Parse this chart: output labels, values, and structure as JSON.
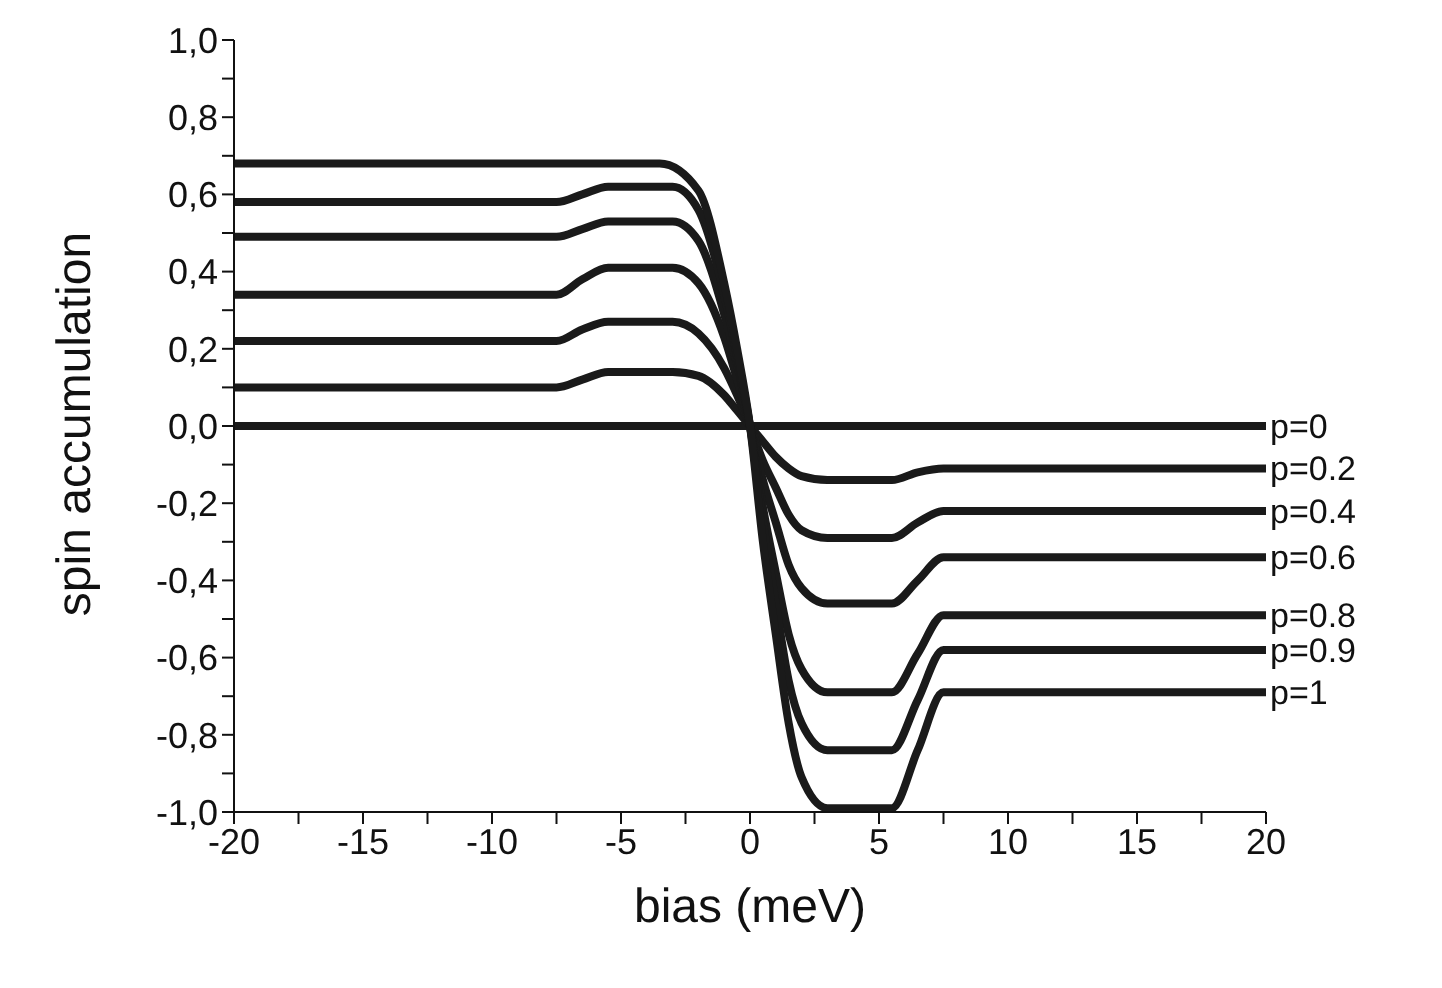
{
  "chart_data": {
    "type": "line",
    "xlabel": "bias (meV)",
    "ylabel": "spin accumulation",
    "legend": false,
    "grid": false,
    "marker": "none",
    "line_style": "solid",
    "xlim": [
      -20,
      20
    ],
    "ylim": [
      -1,
      1
    ],
    "xticks": [
      -20,
      {
        "value": -17.5,
        "label": null
      },
      -15,
      {
        "value": -12.5,
        "label": null
      },
      -10,
      {
        "value": -7.5,
        "label": null
      },
      -5,
      {
        "value": -2.5,
        "label": null
      },
      0,
      {
        "value": 2.5,
        "label": null
      },
      5,
      {
        "value": 7.5,
        "label": null
      },
      10,
      {
        "value": 12.5,
        "label": null
      },
      15,
      {
        "value": 17.5,
        "label": null
      },
      20
    ],
    "yticks": [
      {
        "value": -1,
        "label": "-1,0"
      },
      {
        "value": -0.9,
        "label": null
      },
      {
        "value": -0.8,
        "label": "-0,8"
      },
      {
        "value": -0.7,
        "label": null
      },
      {
        "value": -0.6,
        "label": "-0,6"
      },
      {
        "value": -0.5,
        "label": null
      },
      {
        "value": -0.4,
        "label": "-0,4"
      },
      {
        "value": -0.3,
        "label": null
      },
      {
        "value": -0.2,
        "label": "-0,2"
      },
      {
        "value": -0.1,
        "label": null
      },
      {
        "value": 0,
        "label": "0,0"
      },
      {
        "value": 0.1,
        "label": null
      },
      {
        "value": 0.2,
        "label": "0,2"
      },
      {
        "value": 0.3,
        "label": null
      },
      {
        "value": 0.4,
        "label": "0,4"
      },
      {
        "value": 0.5,
        "label": null
      },
      {
        "value": 0.6,
        "label": "0,6"
      },
      {
        "value": 0.7,
        "label": null
      },
      {
        "value": 0.8,
        "label": "0,8"
      },
      {
        "value": 0.9,
        "label": null
      },
      {
        "value": 1,
        "label": "1,0"
      }
    ],
    "series": [
      {
        "name": "p=0",
        "color": "#1a1a1a",
        "x": [
          -20,
          20
        ],
        "values": [
          0,
          0
        ]
      },
      {
        "name": "p=0.2",
        "color": "#1a1a1a",
        "x": [
          -20,
          -7.5,
          -6.5,
          -5.5,
          -3,
          -2,
          -1,
          -0.5,
          0,
          0.5,
          1,
          1.5,
          2,
          3,
          5.5,
          6.5,
          7.5,
          20
        ],
        "values": [
          0.1,
          0.1,
          0.12,
          0.14,
          0.14,
          0.13,
          0.08,
          0.04,
          0,
          -0.04,
          -0.08,
          -0.11,
          -0.13,
          -0.14,
          -0.14,
          -0.12,
          -0.11,
          -0.11
        ]
      },
      {
        "name": "p=0.4",
        "color": "#1a1a1a",
        "x": [
          -20,
          -7.5,
          -6.5,
          -5.5,
          -3,
          -2,
          -1,
          -0.5,
          0,
          0.5,
          1,
          1.5,
          2,
          3,
          5.5,
          6.5,
          7.5,
          20
        ],
        "values": [
          0.22,
          0.22,
          0.25,
          0.27,
          0.27,
          0.24,
          0.15,
          0.08,
          0,
          -0.09,
          -0.16,
          -0.23,
          -0.27,
          -0.29,
          -0.29,
          -0.25,
          -0.22,
          -0.22
        ]
      },
      {
        "name": "p=0.6",
        "color": "#1a1a1a",
        "x": [
          -20,
          -7.5,
          -6.5,
          -5.5,
          -3,
          -2,
          -1,
          -0.5,
          0,
          0.5,
          1,
          1.5,
          2,
          3,
          5.5,
          6.5,
          7.5,
          20
        ],
        "values": [
          0.34,
          0.34,
          0.38,
          0.41,
          0.41,
          0.37,
          0.23,
          0.12,
          0,
          -0.14,
          -0.25,
          -0.36,
          -0.42,
          -0.46,
          -0.46,
          -0.4,
          -0.34,
          -0.34
        ]
      },
      {
        "name": "p=0.8",
        "color": "#1a1a1a",
        "x": [
          -20,
          -7.5,
          -6.5,
          -5.5,
          -3,
          -2,
          -1,
          -0.5,
          0,
          0.5,
          1,
          1.5,
          2,
          3,
          5.5,
          6.5,
          7.5,
          20
        ],
        "values": [
          0.49,
          0.49,
          0.51,
          0.53,
          0.53,
          0.48,
          0.29,
          0.16,
          0,
          -0.21,
          -0.38,
          -0.54,
          -0.63,
          -0.69,
          -0.69,
          -0.59,
          -0.49,
          -0.49
        ]
      },
      {
        "name": "p=0.9",
        "color": "#1a1a1a",
        "x": [
          -20,
          -7.5,
          -6.5,
          -5.5,
          -3,
          -2,
          -1,
          -0.5,
          0,
          0.5,
          1,
          1.5,
          2,
          3,
          5.5,
          6.5,
          7.5,
          20
        ],
        "values": [
          0.58,
          0.58,
          0.6,
          0.62,
          0.62,
          0.56,
          0.34,
          0.18,
          0,
          -0.25,
          -0.46,
          -0.66,
          -0.77,
          -0.84,
          -0.84,
          -0.71,
          -0.58,
          -0.58
        ]
      },
      {
        "name": "p=1",
        "color": "#1a1a1a",
        "x": [
          -20,
          -3.5,
          -2,
          -1,
          -0.5,
          0,
          0.5,
          1,
          1.5,
          2,
          3,
          5.5,
          6.5,
          7.5,
          20
        ],
        "values": [
          0.68,
          0.68,
          0.61,
          0.37,
          0.2,
          0,
          -0.3,
          -0.54,
          -0.77,
          -0.91,
          -0.99,
          -0.99,
          -0.84,
          -0.69,
          -0.69
        ]
      }
    ]
  }
}
